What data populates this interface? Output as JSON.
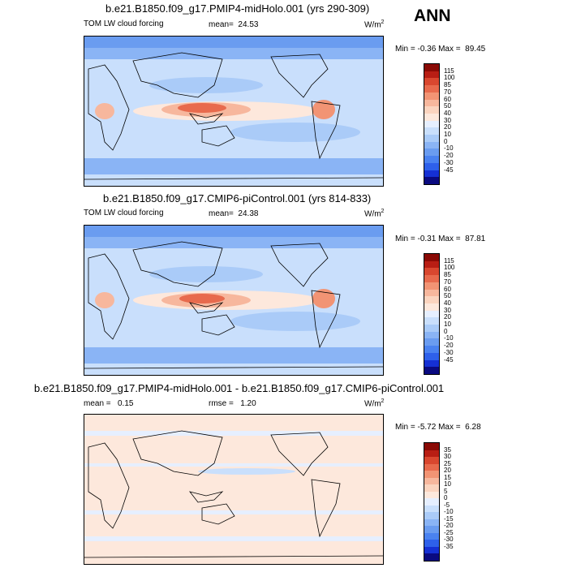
{
  "season": "ANN",
  "colors": {
    "lw": [
      "#0a0a80",
      "#1530d4",
      "#2e60ea",
      "#4a82f0",
      "#6a9cf0",
      "#8ab4f5",
      "#aacbf8",
      "#c9dffc",
      "#e6efff",
      "#fde8dc",
      "#fbd4bf",
      "#f7b79d",
      "#f29474",
      "#e86a4d",
      "#d9472f",
      "#b81e14",
      "#8a0a05"
    ],
    "diff": [
      "#0a0a80",
      "#1530d4",
      "#2e60ea",
      "#4a82f0",
      "#6a9cf0",
      "#8ab4f5",
      "#aacbf8",
      "#c9dffc",
      "#e6efff",
      "#fde8dc",
      "#fbd4bf",
      "#f7b79d",
      "#f29474",
      "#e86a4d",
      "#d9472f",
      "#b81e14",
      "#8a0a05"
    ]
  },
  "chart_data": [
    {
      "type": "heatmap",
      "title": "b.e21.B1850.f09_g17.PMIP4-midHolo.001 (yrs 290-309)",
      "left_label": "TOM LW cloud forcing",
      "mean_label": "mean=",
      "mean": "24.53",
      "units_base": "W/m",
      "units_exp": "2",
      "min_label": "Min =",
      "min": "-0.36",
      "max_label": "Max =",
      "max": "89.45",
      "levels": [
        "115",
        "100",
        "85",
        "70",
        "60",
        "50",
        "40",
        "30",
        "20",
        "10",
        "0",
        "-10",
        "-20",
        "-30",
        "-45"
      ]
    },
    {
      "type": "heatmap",
      "title": "b.e21.B1850.f09_g17.CMIP6-piControl.001 (yrs 814-833)",
      "left_label": "TOM LW cloud forcing",
      "mean_label": "mean=",
      "mean": "24.38",
      "units_base": "W/m",
      "units_exp": "2",
      "min_label": "Min =",
      "min": "-0.31",
      "max_label": "Max =",
      "max": "87.81",
      "levels": [
        "115",
        "100",
        "85",
        "70",
        "60",
        "50",
        "40",
        "30",
        "20",
        "10",
        "0",
        "-10",
        "-20",
        "-30",
        "-45"
      ]
    },
    {
      "type": "heatmap",
      "title": "b.e21.B1850.f09_g17.PMIP4-midHolo.001 - b.e21.B1850.f09_g17.CMIP6-piControl.001",
      "left_label": "mean =",
      "mean": "0.15",
      "rmse_label": "rmse =",
      "rmse": "1.20",
      "units_base": "W/m",
      "units_exp": "2",
      "min_label": "Min =",
      "min": "-5.72",
      "max_label": "Max =",
      "max": "6.28",
      "levels": [
        "35",
        "30",
        "25",
        "20",
        "15",
        "10",
        "5",
        "0",
        "-5",
        "-10",
        "-15",
        "-20",
        "-25",
        "-30",
        "-35"
      ]
    }
  ]
}
